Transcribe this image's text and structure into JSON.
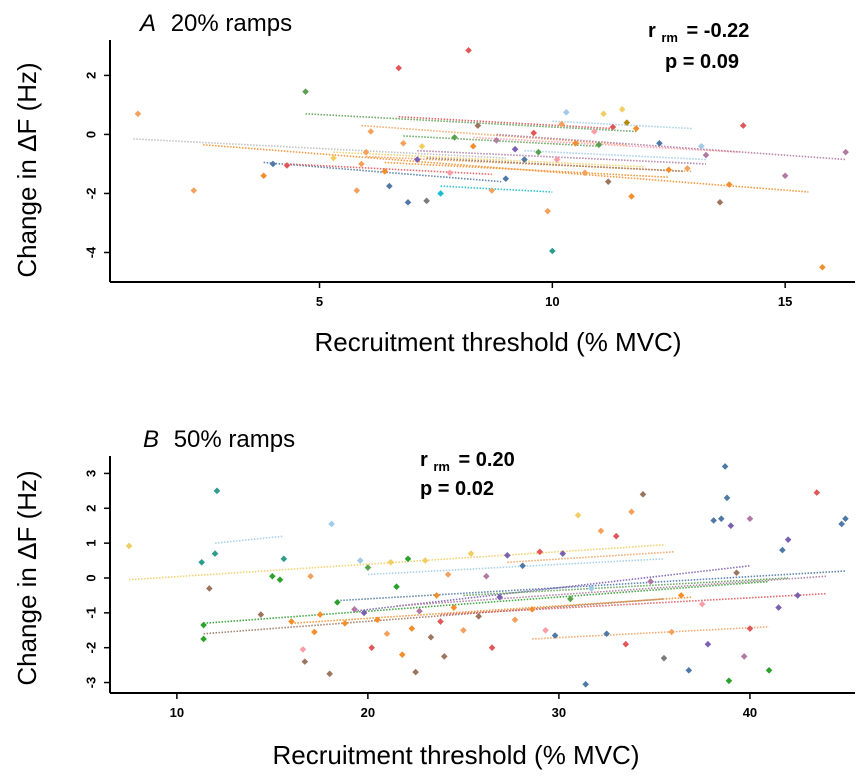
{
  "chart_data": [
    {
      "type": "scatter",
      "panel_letter": "A",
      "title": "20% ramps",
      "xlabel": "Recruitment threshold (% MVC)",
      "ylabel": "Change in ΔF  (Hz)",
      "xlim": [
        0.5,
        16.5
      ],
      "ylim": [
        -5.0,
        3.2
      ],
      "xticks": [
        5,
        10,
        15
      ],
      "yticks": [
        2,
        0,
        -2,
        -4
      ],
      "stat_r_symbol": "r",
      "stat_r_sub": "rm",
      "stat_r_value": "= -0.22",
      "stat_p": "p = 0.09",
      "points": [
        {
          "x": 1.1,
          "y": 0.7,
          "c": "#f4a15d"
        },
        {
          "x": 2.3,
          "y": -1.9,
          "c": "#f4a15d"
        },
        {
          "x": 3.8,
          "y": -1.4,
          "c": "#f28e2b"
        },
        {
          "x": 4.0,
          "y": -1.0,
          "c": "#4e79a7"
        },
        {
          "x": 4.7,
          "y": 1.45,
          "c": "#59a14f"
        },
        {
          "x": 4.3,
          "y": -1.05,
          "c": "#e15759"
        },
        {
          "x": 5.3,
          "y": -0.8,
          "c": "#f1ce63"
        },
        {
          "x": 5.8,
          "y": -1.9,
          "c": "#f4a15d"
        },
        {
          "x": 5.9,
          "y": -1.0,
          "c": "#f4a15d"
        },
        {
          "x": 6.0,
          "y": -0.6,
          "c": "#f4a15d"
        },
        {
          "x": 6.1,
          "y": 0.1,
          "c": "#f4a15d"
        },
        {
          "x": 6.4,
          "y": -1.25,
          "c": "#f28e2b"
        },
        {
          "x": 6.5,
          "y": -1.75,
          "c": "#4e79a7"
        },
        {
          "x": 6.7,
          "y": 2.25,
          "c": "#e15759"
        },
        {
          "x": 6.8,
          "y": -0.3,
          "c": "#f4a15d"
        },
        {
          "x": 6.9,
          "y": -2.3,
          "c": "#4e79a7"
        },
        {
          "x": 7.1,
          "y": -0.85,
          "c": "#7b5fb0"
        },
        {
          "x": 7.2,
          "y": -0.4,
          "c": "#f1ce63"
        },
        {
          "x": 7.3,
          "y": -2.25,
          "c": "#7a7a7a"
        },
        {
          "x": 7.6,
          "y": -2.0,
          "c": "#17becf"
        },
        {
          "x": 7.8,
          "y": -1.3,
          "c": "#ff9da7"
        },
        {
          "x": 7.9,
          "y": -0.1,
          "c": "#59a14f"
        },
        {
          "x": 8.2,
          "y": 2.85,
          "c": "#e15759"
        },
        {
          "x": 8.3,
          "y": -0.4,
          "c": "#f28e2b"
        },
        {
          "x": 8.4,
          "y": 0.3,
          "c": "#9c755f"
        },
        {
          "x": 8.7,
          "y": -1.9,
          "c": "#f4a15d"
        },
        {
          "x": 8.8,
          "y": -0.2,
          "c": "#b07aa1"
        },
        {
          "x": 9.0,
          "y": -1.5,
          "c": "#4e79a7"
        },
        {
          "x": 9.2,
          "y": -0.5,
          "c": "#7b5fb0"
        },
        {
          "x": 9.4,
          "y": -0.85,
          "c": "#4e79a7"
        },
        {
          "x": 9.6,
          "y": 0.05,
          "c": "#e15759"
        },
        {
          "x": 9.7,
          "y": -0.6,
          "c": "#59a14f"
        },
        {
          "x": 9.9,
          "y": -2.6,
          "c": "#f4a15d"
        },
        {
          "x": 10.0,
          "y": -3.95,
          "c": "#2c9c8c"
        },
        {
          "x": 10.1,
          "y": -0.85,
          "c": "#ff9da7"
        },
        {
          "x": 10.2,
          "y": 0.35,
          "c": "#f4a15d"
        },
        {
          "x": 10.3,
          "y": 0.75,
          "c": "#a0cbe8"
        },
        {
          "x": 10.5,
          "y": -0.3,
          "c": "#f28e2b"
        },
        {
          "x": 10.7,
          "y": -1.3,
          "c": "#f4a15d"
        },
        {
          "x": 10.9,
          "y": 0.1,
          "c": "#ff9da7"
        },
        {
          "x": 11.0,
          "y": -0.35,
          "c": "#59a14f"
        },
        {
          "x": 11.1,
          "y": 0.7,
          "c": "#f1ce63"
        },
        {
          "x": 11.2,
          "y": -1.6,
          "c": "#9c755f"
        },
        {
          "x": 11.3,
          "y": 0.25,
          "c": "#e15759"
        },
        {
          "x": 11.5,
          "y": 0.85,
          "c": "#f1ce63"
        },
        {
          "x": 11.6,
          "y": 0.4,
          "c": "#b8860b"
        },
        {
          "x": 11.7,
          "y": -2.1,
          "c": "#f28e2b"
        },
        {
          "x": 11.8,
          "y": 0.2,
          "c": "#f28e2b"
        },
        {
          "x": 12.3,
          "y": -0.3,
          "c": "#4e79a7"
        },
        {
          "x": 12.5,
          "y": -1.2,
          "c": "#f28e2b"
        },
        {
          "x": 12.9,
          "y": -1.15,
          "c": "#f4a15d"
        },
        {
          "x": 13.2,
          "y": -0.4,
          "c": "#a0cbe8"
        },
        {
          "x": 13.3,
          "y": -0.7,
          "c": "#b07aa1"
        },
        {
          "x": 13.6,
          "y": -2.3,
          "c": "#9c755f"
        },
        {
          "x": 13.8,
          "y": -1.7,
          "c": "#f28e2b"
        },
        {
          "x": 14.1,
          "y": 0.3,
          "c": "#e15759"
        },
        {
          "x": 15.0,
          "y": -1.4,
          "c": "#b07aa1"
        },
        {
          "x": 15.8,
          "y": -4.5,
          "c": "#f28e2b"
        },
        {
          "x": 16.3,
          "y": -0.6,
          "c": "#b07aa1"
        }
      ],
      "fits": [
        {
          "x1": 1.0,
          "y1": -0.15,
          "x2": 9.0,
          "y2": -0.8,
          "c": "#bbbbbb"
        },
        {
          "x1": 2.5,
          "y1": -0.35,
          "x2": 15.5,
          "y2": -1.95,
          "c": "#f28e2b"
        },
        {
          "x1": 3.8,
          "y1": -0.95,
          "x2": 8.9,
          "y2": -1.6,
          "c": "#4e79a7"
        },
        {
          "x1": 4.3,
          "y1": -1.0,
          "x2": 8.7,
          "y2": -1.35,
          "c": "#e15759"
        },
        {
          "x1": 4.7,
          "y1": 0.7,
          "x2": 11.8,
          "y2": 0.1,
          "c": "#59a14f"
        },
        {
          "x1": 5.3,
          "y1": -0.6,
          "x2": 12.0,
          "y2": -1.1,
          "c": "#f1ce63"
        },
        {
          "x1": 5.9,
          "y1": 0.3,
          "x2": 11.6,
          "y2": -0.35,
          "c": "#f4a15d"
        },
        {
          "x1": 6.0,
          "y1": -0.75,
          "x2": 13.0,
          "y2": -1.25,
          "c": "#f4a15d"
        },
        {
          "x1": 6.4,
          "y1": -0.95,
          "x2": 12.5,
          "y2": -1.45,
          "c": "#f28e2b"
        },
        {
          "x1": 6.7,
          "y1": 0.6,
          "x2": 11.3,
          "y2": 0.2,
          "c": "#e15759"
        },
        {
          "x1": 6.8,
          "y1": -0.05,
          "x2": 11.0,
          "y2": -0.4,
          "c": "#59a14f"
        },
        {
          "x1": 7.1,
          "y1": -0.55,
          "x2": 13.3,
          "y2": -1.0,
          "c": "#b07aa1"
        },
        {
          "x1": 7.3,
          "y1": -0.8,
          "x2": 12.8,
          "y2": -1.25,
          "c": "#9c755f"
        },
        {
          "x1": 7.6,
          "y1": -1.75,
          "x2": 10.0,
          "y2": -1.95,
          "c": "#17becf"
        },
        {
          "x1": 8.3,
          "y1": -0.1,
          "x2": 14.0,
          "y2": -0.6,
          "c": "#ff9da7"
        },
        {
          "x1": 8.8,
          "y1": 0.0,
          "x2": 16.3,
          "y2": -0.85,
          "c": "#b07aa1"
        },
        {
          "x1": 9.4,
          "y1": -0.55,
          "x2": 13.3,
          "y2": -0.85,
          "c": "#a0cbe8"
        },
        {
          "x1": 10.0,
          "y1": 0.45,
          "x2": 13.0,
          "y2": 0.2,
          "c": "#a0cbe8"
        }
      ]
    },
    {
      "type": "scatter",
      "panel_letter": "B",
      "title": "50% ramps",
      "xlabel": "Recruitment threshold (% MVC)",
      "ylabel": "Change in ΔF  (Hz)",
      "xlim": [
        6.5,
        45.5
      ],
      "ylim": [
        -3.3,
        3.5
      ],
      "xticks": [
        10,
        20,
        30,
        40
      ],
      "yticks": [
        3,
        2,
        1,
        0,
        -1,
        -2,
        -3
      ],
      "stat_r_symbol": "r",
      "stat_r_sub": "rm",
      "stat_r_value": "= 0.20",
      "stat_p": "p = 0.02",
      "points": [
        {
          "x": 7.5,
          "y": 0.92,
          "c": "#f1ce63"
        },
        {
          "x": 11.3,
          "y": 0.45,
          "c": "#2c9c8c"
        },
        {
          "x": 11.4,
          "y": -1.35,
          "c": "#2ca02c"
        },
        {
          "x": 11.4,
          "y": -1.75,
          "c": "#2ca02c"
        },
        {
          "x": 11.7,
          "y": -0.3,
          "c": "#9c755f"
        },
        {
          "x": 12.0,
          "y": 0.7,
          "c": "#2c9c8c"
        },
        {
          "x": 12.1,
          "y": 2.5,
          "c": "#2c9c8c"
        },
        {
          "x": 14.4,
          "y": -1.05,
          "c": "#9c755f"
        },
        {
          "x": 15.0,
          "y": 0.05,
          "c": "#2ca02c"
        },
        {
          "x": 15.4,
          "y": -0.05,
          "c": "#2ca02c"
        },
        {
          "x": 15.6,
          "y": 0.55,
          "c": "#2c9c8c"
        },
        {
          "x": 16.0,
          "y": -1.25,
          "c": "#f28e2b"
        },
        {
          "x": 16.6,
          "y": -2.05,
          "c": "#ff9da7"
        },
        {
          "x": 16.7,
          "y": -2.4,
          "c": "#9c755f"
        },
        {
          "x": 17.0,
          "y": 0.05,
          "c": "#f4a15d"
        },
        {
          "x": 17.2,
          "y": -1.55,
          "c": "#f28e2b"
        },
        {
          "x": 17.5,
          "y": -1.05,
          "c": "#f28e2b"
        },
        {
          "x": 18.0,
          "y": -2.75,
          "c": "#9c755f"
        },
        {
          "x": 18.1,
          "y": 1.55,
          "c": "#a0cbe8"
        },
        {
          "x": 18.4,
          "y": -0.7,
          "c": "#2ca02c"
        },
        {
          "x": 18.8,
          "y": -1.3,
          "c": "#f28e2b"
        },
        {
          "x": 19.3,
          "y": -0.9,
          "c": "#b07aa1"
        },
        {
          "x": 19.6,
          "y": 0.5,
          "c": "#a0cbe8"
        },
        {
          "x": 19.8,
          "y": -1.0,
          "c": "#7b5fb0"
        },
        {
          "x": 20.0,
          "y": 0.3,
          "c": "#59a14f"
        },
        {
          "x": 20.2,
          "y": -2.0,
          "c": "#e15759"
        },
        {
          "x": 20.5,
          "y": -1.2,
          "c": "#f28e2b"
        },
        {
          "x": 21.0,
          "y": -1.6,
          "c": "#f4a15d"
        },
        {
          "x": 21.2,
          "y": 0.45,
          "c": "#f1ce63"
        },
        {
          "x": 21.5,
          "y": -0.25,
          "c": "#2ca02c"
        },
        {
          "x": 21.8,
          "y": -2.2,
          "c": "#f28e2b"
        },
        {
          "x": 22.1,
          "y": 0.55,
          "c": "#2ca02c"
        },
        {
          "x": 22.3,
          "y": -1.45,
          "c": "#f28e2b"
        },
        {
          "x": 22.5,
          "y": -2.7,
          "c": "#9c755f"
        },
        {
          "x": 22.7,
          "y": -0.95,
          "c": "#b07aa1"
        },
        {
          "x": 23.0,
          "y": 0.5,
          "c": "#f1ce63"
        },
        {
          "x": 23.3,
          "y": -1.7,
          "c": "#9c755f"
        },
        {
          "x": 23.6,
          "y": -0.5,
          "c": "#f28e2b"
        },
        {
          "x": 23.8,
          "y": -1.25,
          "c": "#e15759"
        },
        {
          "x": 24.0,
          "y": -2.25,
          "c": "#9c755f"
        },
        {
          "x": 24.2,
          "y": 0.1,
          "c": "#f4a15d"
        },
        {
          "x": 24.5,
          "y": -0.85,
          "c": "#f28e2b"
        },
        {
          "x": 25.0,
          "y": -1.5,
          "c": "#f4a15d"
        },
        {
          "x": 25.4,
          "y": 0.7,
          "c": "#f1ce63"
        },
        {
          "x": 25.8,
          "y": -1.1,
          "c": "#9c755f"
        },
        {
          "x": 26.2,
          "y": 0.05,
          "c": "#b07aa1"
        },
        {
          "x": 26.5,
          "y": -2.0,
          "c": "#e15759"
        },
        {
          "x": 26.9,
          "y": -0.55,
          "c": "#7b5fb0"
        },
        {
          "x": 27.3,
          "y": 0.65,
          "c": "#7b5fb0"
        },
        {
          "x": 27.7,
          "y": -1.2,
          "c": "#f4a15d"
        },
        {
          "x": 28.1,
          "y": 0.35,
          "c": "#4e79a7"
        },
        {
          "x": 28.6,
          "y": -0.9,
          "c": "#f28e2b"
        },
        {
          "x": 29.0,
          "y": 0.75,
          "c": "#e15759"
        },
        {
          "x": 29.3,
          "y": -1.5,
          "c": "#ff9da7"
        },
        {
          "x": 29.8,
          "y": -1.65,
          "c": "#4e79a7"
        },
        {
          "x": 30.2,
          "y": 0.7,
          "c": "#7b5fb0"
        },
        {
          "x": 30.6,
          "y": -0.6,
          "c": "#59a14f"
        },
        {
          "x": 31.0,
          "y": 1.8,
          "c": "#f1ce63"
        },
        {
          "x": 31.4,
          "y": -3.05,
          "c": "#4e79a7"
        },
        {
          "x": 31.7,
          "y": -0.3,
          "c": "#a0cbe8"
        },
        {
          "x": 32.2,
          "y": 1.35,
          "c": "#f4a15d"
        },
        {
          "x": 32.5,
          "y": -1.6,
          "c": "#4e79a7"
        },
        {
          "x": 33.0,
          "y": 1.2,
          "c": "#e15759"
        },
        {
          "x": 33.5,
          "y": -1.9,
          "c": "#e15759"
        },
        {
          "x": 33.8,
          "y": 1.9,
          "c": "#f4a15d"
        },
        {
          "x": 34.4,
          "y": 2.4,
          "c": "#9c755f"
        },
        {
          "x": 34.8,
          "y": -0.1,
          "c": "#b07aa1"
        },
        {
          "x": 35.5,
          "y": -2.3,
          "c": "#7a7a7a"
        },
        {
          "x": 35.9,
          "y": -1.55,
          "c": "#f4a15d"
        },
        {
          "x": 36.4,
          "y": -0.5,
          "c": "#f28e2b"
        },
        {
          "x": 36.8,
          "y": -2.65,
          "c": "#4e79a7"
        },
        {
          "x": 37.5,
          "y": -0.75,
          "c": "#ff9da7"
        },
        {
          "x": 37.8,
          "y": -1.9,
          "c": "#7b5fb0"
        },
        {
          "x": 38.1,
          "y": 1.65,
          "c": "#4e79a7"
        },
        {
          "x": 38.5,
          "y": 1.7,
          "c": "#4e79a7"
        },
        {
          "x": 38.7,
          "y": 3.2,
          "c": "#4e79a7"
        },
        {
          "x": 38.8,
          "y": 2.3,
          "c": "#4e79a7"
        },
        {
          "x": 38.9,
          "y": -2.95,
          "c": "#2ca02c"
        },
        {
          "x": 39.0,
          "y": 1.5,
          "c": "#7b5fb0"
        },
        {
          "x": 39.3,
          "y": 0.15,
          "c": "#9c755f"
        },
        {
          "x": 39.7,
          "y": -2.25,
          "c": "#b07aa1"
        },
        {
          "x": 40.0,
          "y": 1.7,
          "c": "#b07aa1"
        },
        {
          "x": 40.0,
          "y": -1.45,
          "c": "#e15759"
        },
        {
          "x": 41.0,
          "y": -2.65,
          "c": "#2ca02c"
        },
        {
          "x": 41.5,
          "y": -0.85,
          "c": "#7b5fb0"
        },
        {
          "x": 41.7,
          "y": 0.8,
          "c": "#4e79a7"
        },
        {
          "x": 42.0,
          "y": 1.1,
          "c": "#7b5fb0"
        },
        {
          "x": 42.5,
          "y": -0.5,
          "c": "#7b5fb0"
        },
        {
          "x": 43.5,
          "y": 2.45,
          "c": "#e15759"
        },
        {
          "x": 44.8,
          "y": 1.55,
          "c": "#4e79a7"
        },
        {
          "x": 45.0,
          "y": 1.7,
          "c": "#4e79a7"
        }
      ],
      "fits": [
        {
          "x1": 7.5,
          "y1": -0.05,
          "x2": 35.5,
          "y2": 0.95,
          "c": "#f1ce63"
        },
        {
          "x1": 12.0,
          "y1": 1.0,
          "x2": 15.6,
          "y2": 1.2,
          "c": "#a0cbe8"
        },
        {
          "x1": 11.4,
          "y1": -1.3,
          "x2": 41.0,
          "y2": -0.1,
          "c": "#2ca02c"
        },
        {
          "x1": 11.4,
          "y1": -1.6,
          "x2": 35.5,
          "y2": -0.6,
          "c": "#9c755f"
        },
        {
          "x1": 16.0,
          "y1": -1.3,
          "x2": 37.0,
          "y2": -0.55,
          "c": "#f28e2b"
        },
        {
          "x1": 18.4,
          "y1": -0.65,
          "x2": 45.0,
          "y2": 0.2,
          "c": "#4e79a7"
        },
        {
          "x1": 19.3,
          "y1": -0.95,
          "x2": 40.0,
          "y2": 0.35,
          "c": "#7b5fb0"
        },
        {
          "x1": 20.0,
          "y1": 0.1,
          "x2": 35.5,
          "y2": 0.55,
          "c": "#a0cbe8"
        },
        {
          "x1": 21.5,
          "y1": -0.8,
          "x2": 44.0,
          "y2": 0.05,
          "c": "#b07aa1"
        },
        {
          "x1": 23.8,
          "y1": -1.05,
          "x2": 44.0,
          "y2": -0.45,
          "c": "#e15759"
        },
        {
          "x1": 25.0,
          "y1": -0.5,
          "x2": 42.0,
          "y2": 0.0,
          "c": "#59a14f"
        },
        {
          "x1": 28.6,
          "y1": -1.75,
          "x2": 41.0,
          "y2": -1.4,
          "c": "#f4a15d"
        },
        {
          "x1": 27.3,
          "y1": 0.45,
          "x2": 36.0,
          "y2": 0.75,
          "c": "#f4a15d"
        }
      ]
    }
  ]
}
